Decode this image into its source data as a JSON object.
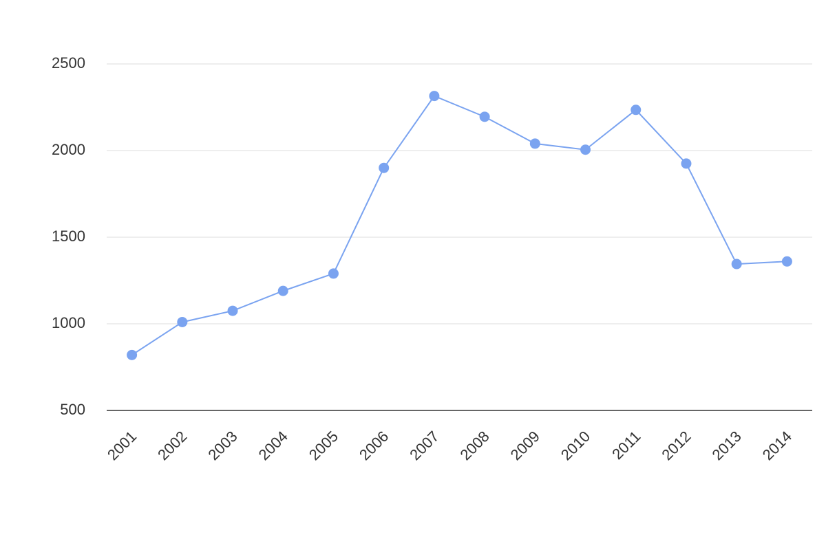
{
  "chart_data": {
    "type": "line",
    "categories": [
      "2001",
      "2002",
      "2003",
      "2004",
      "2005",
      "2006",
      "2007",
      "2008",
      "2009",
      "2010",
      "2011",
      "2012",
      "2013",
      "2014"
    ],
    "series": [
      {
        "color": "#7aa3f0",
        "values": [
          820,
          1010,
          1075,
          1190,
          1290,
          1900,
          2315,
          2195,
          2040,
          2005,
          2235,
          1925,
          1345,
          1360
        ]
      }
    ],
    "ylim": [
      500,
      2500
    ],
    "yticks": [
      500,
      1000,
      1500,
      2000,
      2500
    ],
    "grid": true
  }
}
